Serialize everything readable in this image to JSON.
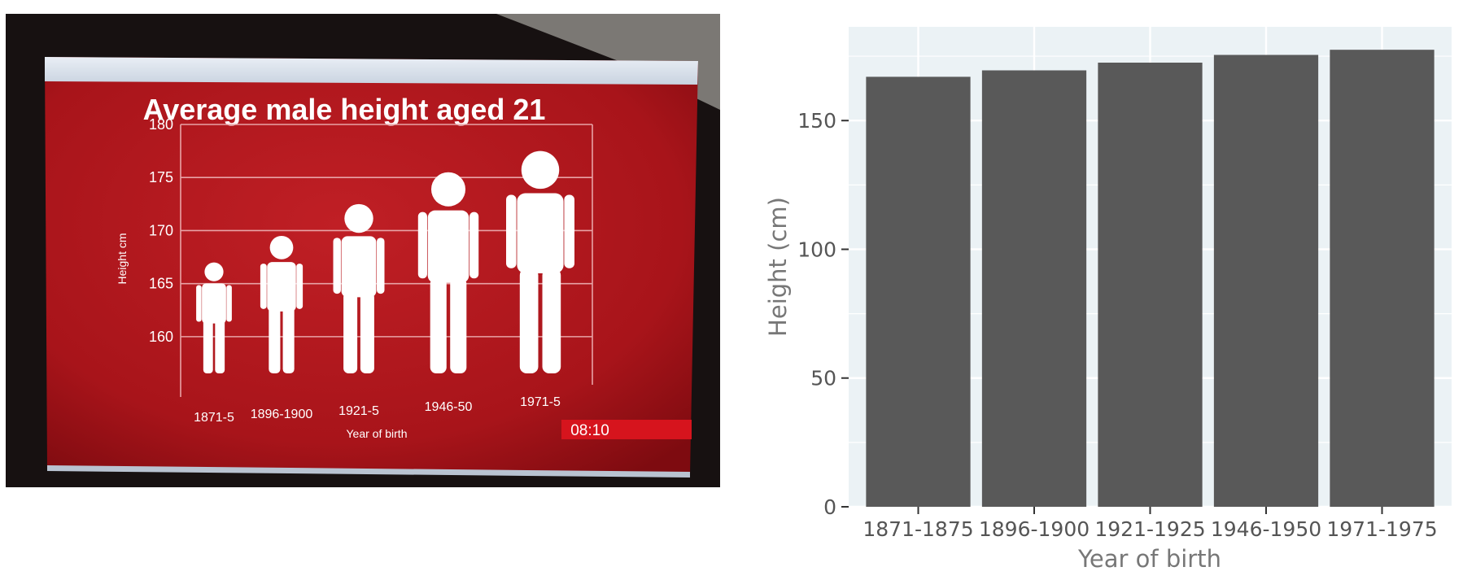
{
  "chart_data": [
    {
      "type": "bar",
      "title": "Average male height aged 21",
      "xlabel": "Year of birth",
      "ylabel": "Height cm",
      "categories": [
        "1871-5",
        "1896-1900",
        "1921-5",
        "1946-50",
        "1971-5"
      ],
      "values": [
        167,
        169.5,
        172.5,
        175.5,
        177.5
      ],
      "ylim": [
        157,
        180
      ],
      "yticks": [
        160,
        165,
        170,
        175,
        180
      ],
      "grid": true,
      "timestamp": "08:10",
      "colors": {
        "background": "#b0161c",
        "figure": "#ffffff",
        "bezel": "#1a1212"
      }
    },
    {
      "type": "bar",
      "xlabel": "Year of birth",
      "ylabel": "Height (cm)",
      "categories": [
        "1871-1875",
        "1896-1900",
        "1921-1925",
        "1946-1950",
        "1971-1975"
      ],
      "values": [
        167,
        169.5,
        172.5,
        175.5,
        177.5
      ],
      "ylim": [
        0,
        186.4
      ],
      "yticks": [
        0,
        50,
        100,
        150
      ],
      "grid": true,
      "colors": {
        "bar": "#595959",
        "panel": "#ebf2f5",
        "grid": "#ffffff",
        "text": "#555555"
      }
    }
  ]
}
